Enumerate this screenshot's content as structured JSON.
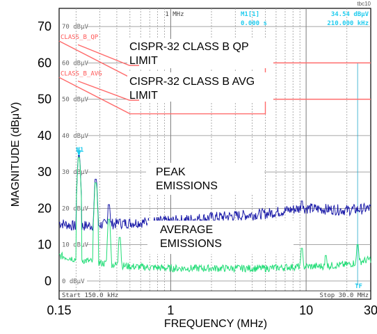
{
  "chart_data": {
    "type": "line",
    "xlabel": "FREQUENCY (MHz)",
    "ylabel": "MAGNITUDE (dBμV)",
    "xscale": "log",
    "xlim": [
      0.15,
      30
    ],
    "ylim": [
      -5,
      75
    ],
    "x_ticks": [
      {
        "value": 0.15,
        "label": "0.15"
      },
      {
        "value": 1,
        "label": "1"
      },
      {
        "value": 10,
        "label": "10"
      },
      {
        "value": 30,
        "label": "30"
      }
    ],
    "y_ticks": [
      0,
      10,
      20,
      30,
      40,
      50,
      60,
      70
    ],
    "grid": true,
    "inner_y_labels": [
      "70 dBμV",
      "60 dBμV",
      "50 dBμV",
      "40 dBμV",
      "30 dBμV",
      "20 dBμV",
      "10 dBμV",
      "0 dBμV"
    ],
    "instrument": {
      "center_marker_label": "1 MHz",
      "marker_name": "M1[1]",
      "marker_time": "0.000 s",
      "marker_level": "34.54 dBμV",
      "marker_freq": "210.000 kHz",
      "marker_tag": "M1",
      "tf_tag": "TF",
      "start_label": "Start 150.0 kHz",
      "stop_label": "Stop 30.0 MHz",
      "corner_code": "tbc10"
    },
    "limits": [
      {
        "tag": "CLASS_B_QP",
        "name": "CISPR-32 CLASS B QP LIMIT",
        "points": [
          [
            0.15,
            66
          ],
          [
            0.5,
            56
          ],
          [
            5,
            56
          ],
          [
            5,
            60
          ],
          [
            30,
            60
          ]
        ]
      },
      {
        "tag": "CLASS_B_AVG",
        "name": "CISPR-32 CLASS B AVG LIMIT",
        "points": [
          [
            0.15,
            56
          ],
          [
            0.5,
            46
          ],
          [
            5,
            46
          ],
          [
            5,
            50
          ],
          [
            30,
            50
          ]
        ]
      }
    ],
    "series": [
      {
        "name": "PEAK EMISSIONS",
        "color": "#1a1aa8",
        "baseline": [
          [
            0.15,
            16
          ],
          [
            0.2,
            15
          ],
          [
            0.3,
            15.5
          ],
          [
            0.5,
            16
          ],
          [
            1,
            16.5
          ],
          [
            2,
            17.5
          ],
          [
            5,
            18.5
          ],
          [
            9,
            20
          ],
          [
            10,
            20
          ],
          [
            20,
            19.5
          ],
          [
            30,
            20
          ]
        ],
        "spikes": [
          [
            0.21,
            34.5
          ],
          [
            0.28,
            28
          ],
          [
            0.35,
            21
          ],
          [
            0.42,
            17
          ],
          [
            9.3,
            22
          ]
        ]
      },
      {
        "name": "AVERAGE EMISSIONS",
        "color": "#22dd77",
        "baseline": [
          [
            0.15,
            7
          ],
          [
            0.2,
            6
          ],
          [
            0.3,
            5
          ],
          [
            0.5,
            4
          ],
          [
            1,
            3.5
          ],
          [
            2,
            3.5
          ],
          [
            5,
            3.5
          ],
          [
            9,
            4
          ],
          [
            12,
            4
          ],
          [
            20,
            4.5
          ],
          [
            30,
            6
          ]
        ],
        "spikes": [
          [
            0.21,
            34
          ],
          [
            0.28,
            27
          ],
          [
            0.35,
            17
          ],
          [
            0.42,
            12
          ],
          [
            9.3,
            9
          ],
          [
            14,
            7
          ],
          [
            24,
            10
          ]
        ]
      }
    ],
    "annotations": [
      {
        "lines": [
          "CISPR-32 CLASS B QP",
          "LIMIT"
        ]
      },
      {
        "lines": [
          "CISPR-32 CLASS B AVG",
          "LIMIT"
        ]
      },
      {
        "lines": [
          "PEAK",
          "EMISSIONS"
        ]
      },
      {
        "lines": [
          "AVERAGE",
          "EMISSIONS"
        ]
      }
    ]
  }
}
